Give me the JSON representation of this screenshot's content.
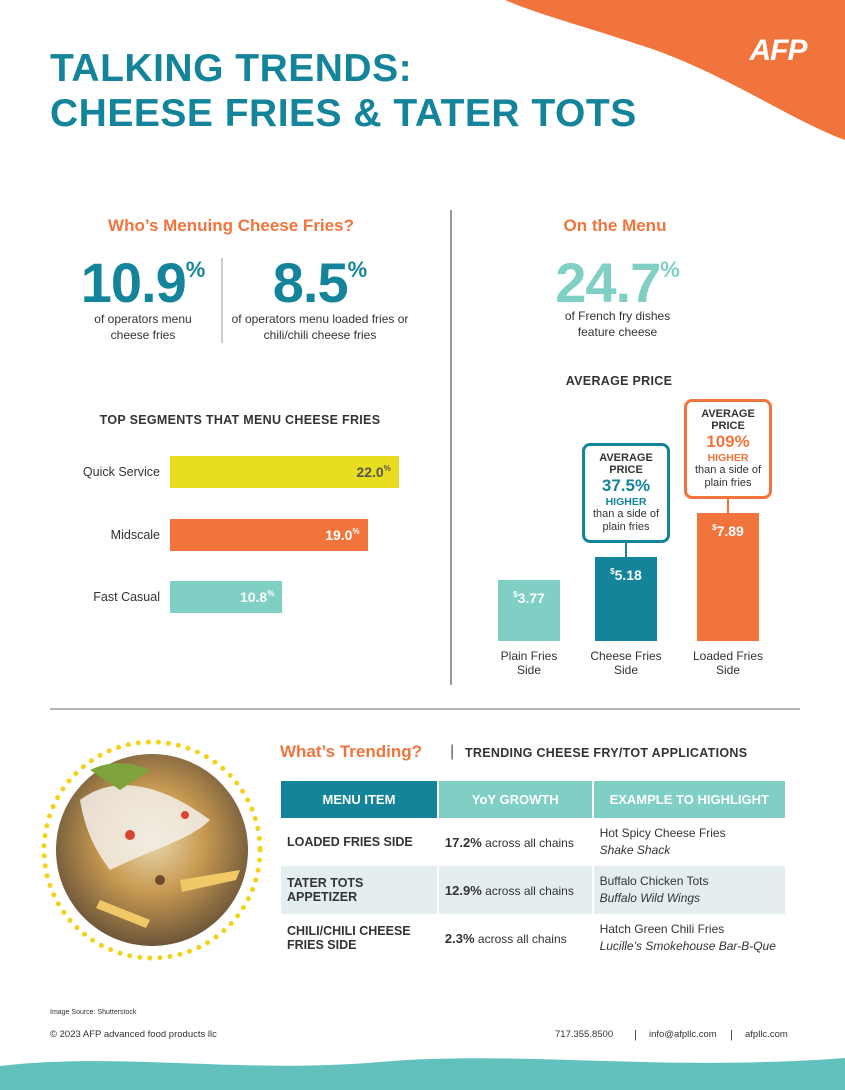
{
  "header": {
    "title": [
      "TALKING TRENDS:",
      "CHEESE FRIES & TATER TOTS"
    ],
    "logo": "AFP"
  },
  "menuing": {
    "heading": "Who’s Menuing Cheese Fries?",
    "stats": [
      {
        "value": 10.9,
        "unit": "%",
        "caption": "of operators menu cheese fries"
      },
      {
        "value": 8.5,
        "unit": "%",
        "caption": "of operators menu loaded fries or chili/chili cheese fries"
      }
    ]
  },
  "on_menu": {
    "heading": "On the Menu",
    "stat": {
      "value": 24.7,
      "unit": "%",
      "caption": "of French fry dishes feature cheese"
    }
  },
  "chart_data": [
    {
      "type": "bar",
      "orientation": "horizontal",
      "title": "TOP SEGMENTS THAT MENU CHEESE FRIES",
      "categories": [
        "Quick Service",
        "Midscale",
        "Fast Casual"
      ],
      "values": [
        22.0,
        19.0,
        10.8
      ],
      "value_labels": [
        "22.0",
        "19.0",
        "10.8"
      ],
      "unit": "%",
      "colors": [
        "#e8dd1e",
        "#f0743c",
        "#7fcfc4"
      ]
    },
    {
      "type": "bar",
      "orientation": "vertical",
      "title": "AVERAGE PRICE",
      "categories": [
        "Plain Fries Side",
        "Cheese Fries Side",
        "Loaded Fries Side"
      ],
      "values": [
        3.77,
        5.18,
        7.89
      ],
      "unit": "$",
      "colors": [
        "#7fcfc4",
        "#13849a",
        "#f0743c"
      ],
      "annotations": [
        {
          "label": "AVERAGE PRICE",
          "value": 37.5,
          "unit": "%",
          "word": "HIGHER",
          "note": "than a side of plain fries",
          "color": "#13849a"
        },
        {
          "label": "AVERAGE PRICE",
          "value": 109,
          "unit": "%",
          "word": "HIGHER",
          "note": "than a side of plain fries",
          "color": "#f0743c"
        }
      ]
    }
  ],
  "trending": {
    "heading": "What’s Trending?",
    "subheading": "TRENDING CHEESE FRY/TOT APPLICATIONS",
    "table": {
      "columns": [
        "MENU ITEM",
        "YoY GROWTH",
        "EXAMPLE TO HIGHLIGHT"
      ],
      "rows": [
        [
          "LOADED FRIES SIDE",
          "17.2%",
          "across all chains",
          "Hot Spicy Cheese Fries",
          "Shake Shack"
        ],
        [
          "TATER TOTS APPETIZER",
          "12.9%",
          "across all chains",
          "Buffalo Chicken Tots",
          "Buffalo Wild Wings"
        ],
        [
          "CHILI/CHILI CHEESE FRIES SIDE",
          "2.3%",
          "across all chains",
          "Hatch Green Chili Fries",
          "Lucille’s Smokehouse Bar-B-Que"
        ]
      ]
    }
  },
  "footer": {
    "image_source": "Image Source: Shutterstock",
    "copyright": "© 2023 AFP advanced food products llc",
    "phone": "717.355.8500",
    "email": "info@afpllc.com",
    "website": "afpllc.com"
  }
}
